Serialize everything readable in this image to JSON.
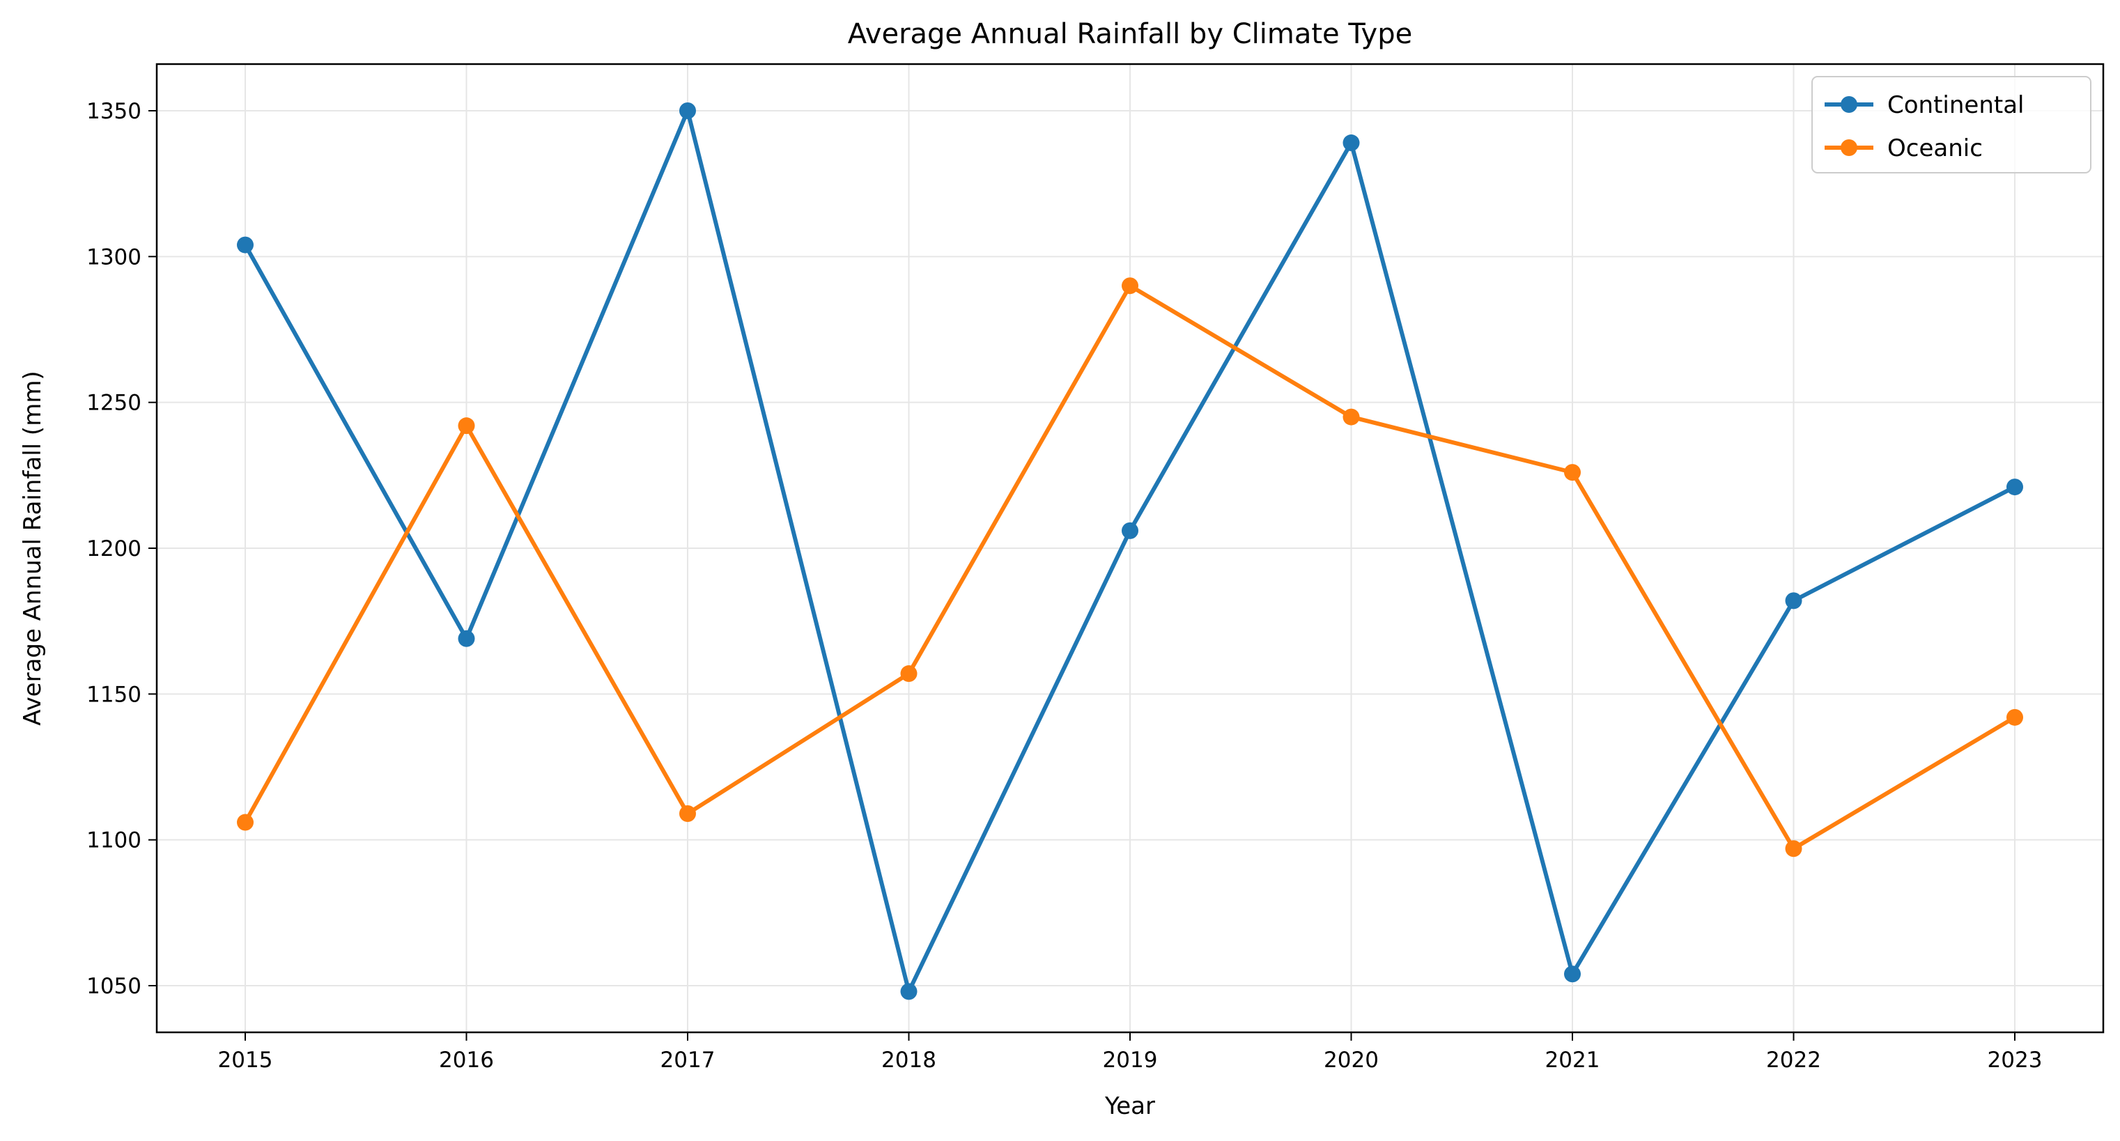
{
  "chart_data": {
    "type": "line",
    "title": "Average Annual Rainfall by Climate Type",
    "xlabel": "Year",
    "ylabel": "Average Annual Rainfall (mm)",
    "x": [
      2015,
      2016,
      2017,
      2018,
      2019,
      2020,
      2021,
      2022,
      2023
    ],
    "xlim": [
      2014.6,
      2023.4
    ],
    "ylim": [
      1034,
      1366
    ],
    "yticks": [
      1050,
      1100,
      1150,
      1200,
      1250,
      1300,
      1350
    ],
    "grid": true,
    "legend_position": "top-right",
    "series": [
      {
        "name": "Continental",
        "color": "#1f77b4",
        "values": [
          1304,
          1169,
          1350,
          1048,
          1206,
          1339,
          1054,
          1182,
          1221
        ]
      },
      {
        "name": "Oceanic",
        "color": "#ff7f0e",
        "values": [
          1106,
          1242,
          1109,
          1157,
          1290,
          1245,
          1226,
          1097,
          1142
        ]
      }
    ]
  }
}
